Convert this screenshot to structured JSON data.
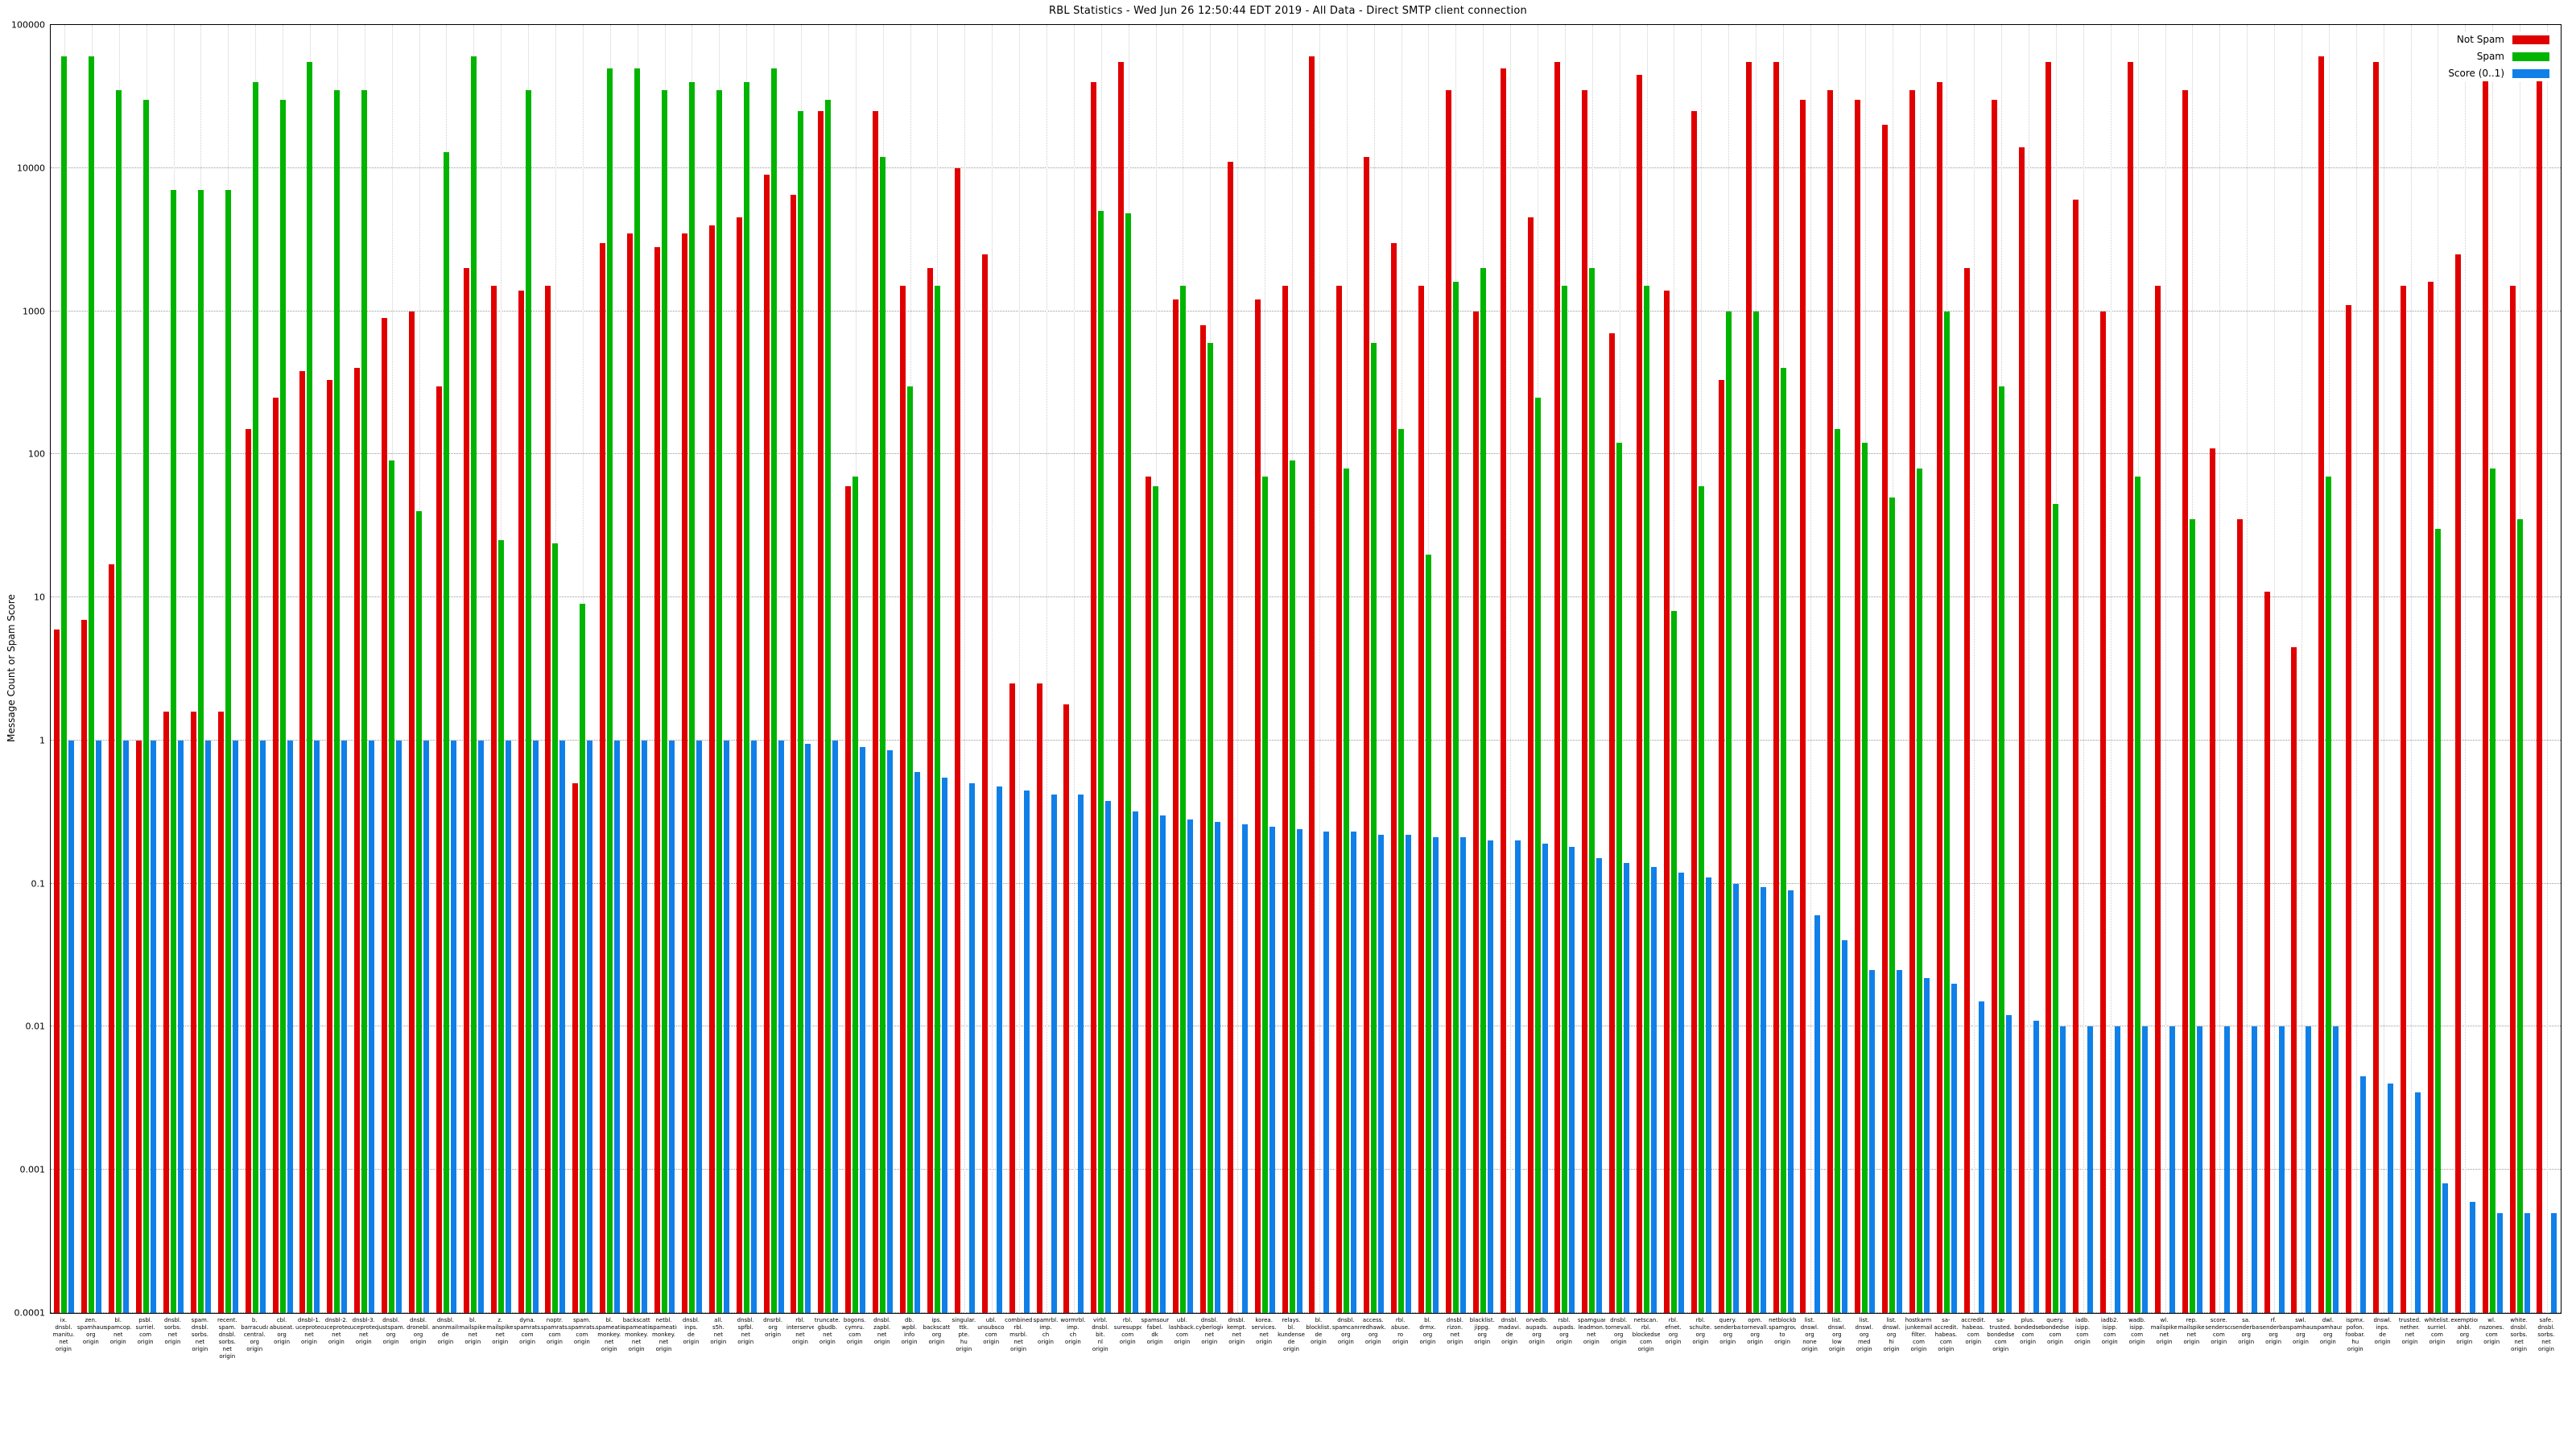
{
  "chart_data": {
    "type": "bar",
    "title": "RBL Statistics - Wed Jun 26 12:50:44 EDT 2019 - All Data - Direct SMTP client connection",
    "ylabel": "Message Count or Spam Score",
    "xlabel": "",
    "log_scale": true,
    "grid": true,
    "legend_position": "top-right",
    "ylim": [
      0.0001,
      100000
    ],
    "yticks": [
      {
        "value": 0.0001,
        "label": "0.0001"
      },
      {
        "value": 0.001,
        "label": "0.001"
      },
      {
        "value": 0.01,
        "label": "0.01"
      },
      {
        "value": 0.1,
        "label": "0.1"
      },
      {
        "value": 1,
        "label": "1"
      },
      {
        "value": 10,
        "label": "10"
      },
      {
        "value": 100,
        "label": "100"
      },
      {
        "value": 1000,
        "label": "1000"
      },
      {
        "value": 10000,
        "label": "10000"
      },
      {
        "value": 100000,
        "label": "100000"
      }
    ],
    "categories": [
      "ix.\ndnsbl.\nmanitu.\nnet\norigin",
      "zen.\nspamhaus.\norg\norigin",
      "bl.\nspamcop.\nnet\norigin",
      "psbl.\nsurriel.\ncom\norigin",
      "dnsbl.\nsorbs.\nnet\norigin",
      "spam.\ndnsbl.\nsorbs.\nnet\norigin",
      "recent.\nspam.\ndnsbl.\nsorbs.\nnet\norigin",
      "b.\nbarracuda\ncentral.\norg\norigin",
      "cbl.\nabuseat.\norg\norigin",
      "dnsbl-1.\nuceprotect.\nnet\norigin",
      "dnsbl-2.\nuceprotect.\nnet\norigin",
      "dnsbl-3.\nuceprotect.\nnet\norigin",
      "dnsbl.\njustspam.\norg\norigin",
      "dnsbl.\ndronebl.\norg\norigin",
      "dnsbl.\nanonmails.\nde\norigin",
      "bl.\nmailspike.\nnet\norigin",
      "z.\nmailspike.\nnet\norigin",
      "dyna.\nspamrats.\ncom\norigin",
      "noptr.\nspamrats.\ncom\norigin",
      "spam.\nspamrats.\ncom\norigin",
      "bl.\nspameating\nmonkey.\nnet\norigin",
      "backscatter.\nspameating\nmonkey.\nnet\norigin",
      "netbl.\nspameating\nmonkey.\nnet\norigin",
      "dnsbl.\ninps.\nde\norigin",
      "all.\ns5h.\nnet\norigin",
      "dnsbl.\nspfbl.\nnet\norigin",
      "dnsrbl.\norg\norigin",
      "rbl.\ninterserver.\nnet\norigin",
      "truncate.\ngbudb.\nnet\norigin",
      "bogons.\ncymru.\ncom\norigin",
      "dnsbl.\nzapbl.\nnet\norigin",
      "db.\nwpbl.\ninfo\norigin",
      "ips.\nbackscatterer.\norg\norigin",
      "singular.\nttk.\npte.\nhu\norigin",
      "ubl.\nunsubscore.\ncom\norigin",
      "combined.\nrbl.\nmsrbl.\nnet\norigin",
      "spamrbl.\nimp.\nch\norigin",
      "wormrbl.\nimp.\nch\norigin",
      "virbl.\ndnsbl.\nbit.\nnl\norigin",
      "rbl.\nsuresupport.\ncom\norigin",
      "spamsources.\nfabel.\ndk\norigin",
      "ubl.\nlashback.\ncom\norigin",
      "dnsbl.\ncyberlogic.\nnet\norigin",
      "dnsbl.\nkempt.\nnet\norigin",
      "korea.\nservices.\nnet\norigin",
      "relays.\nbl.\nkundenserver.\nde\norigin",
      "bl.\nblocklist.\nde\norigin",
      "dnsbl.\nspamcannibal.\norg\norigin",
      "access.\nredhawk.\norg\norigin",
      "rbl.\nabuse.\nro\norigin",
      "bl.\ndrmx.\norg\norigin",
      "dnsbl.\nrizon.\nnet\norigin",
      "blacklist.\njippg.\norg\norigin",
      "dnsbl.\nmadavi.\nde\norigin",
      "orvedb.\naupads.\norg\norigin",
      "rsbl.\naupads.\norg\norigin",
      "spamguard.\nleadmon.\nnet\norigin",
      "dnsbl.\ntornevall.\norg\norigin",
      "netscan.\nrbl.\nblockedservers.\ncom\norigin",
      "rbl.\nefnet.\norg\norigin",
      "rbl.\nschulte.\norg\norigin",
      "query.\nsenderbase.\norg\norigin",
      "opm.\ntornevall.\norg\norigin",
      "netblockbl.\nspamgrouper.\nto\norigin",
      "list.\ndnswl.\norg\nnone\norigin",
      "list.\ndnswl.\norg\nlow\norigin",
      "list.\ndnswl.\norg\nmed\norigin",
      "list.\ndnswl.\norg\nhi\norigin",
      "hostkarma.\njunkemail\nfilter.\ncom\norigin",
      "sa-accredit.\nhabeas.\ncom\norigin",
      "accredit.\nhabeas.\ncom\norigin",
      "sa-trusted.\nbondedsender.\ncom\norigin",
      "plus.\nbondedsender.\ncom\norigin",
      "query.\nbondedsender.\ncom\norigin",
      "iadb.\nisipp.\ncom\norigin",
      "iadb2.\nisipp.\ncom\norigin",
      "wadb.\nisipp.\ncom\norigin",
      "wl.\nmailspike.\nnet\norigin",
      "rep.\nmailspike.\nnet\norigin",
      "score.\nsenderscore.\ncom\norigin",
      "sa.\nsenderbase.\norg\norigin",
      "rf.\nsenderbase.\norg\norigin",
      "swl.\nspamhaus.\norg\norigin",
      "dwl.\nspamhaus.\norg\norigin",
      "ispmx.\npofon.\nfoobar.\nhu\norigin",
      "dnswl.\ninps.\nde\norigin",
      "trusted.\nnether.\nnet\norigin",
      "whitelist.\nsurriel.\ncom\norigin",
      "exemptions.\nahbl.\norg\norigin",
      "wl.\nnszones.\ncom\norigin",
      "white.\ndnsbl.\nsorbs.\nnet\norigin",
      "safe.\ndnsbl.\nsorbs.\nnet\norigin"
    ],
    "series": [
      {
        "name": "Not Spam",
        "color": "#e00000",
        "values": [
          6,
          7,
          17,
          1,
          1.6,
          1.6,
          1.6,
          150,
          250,
          380,
          330,
          400,
          900,
          1000,
          300,
          2000,
          1500,
          1400,
          1500,
          0.5,
          3000,
          3500,
          2800,
          3500,
          4000,
          4500,
          9000,
          6500,
          25000,
          60,
          25000,
          1500,
          2000,
          10000,
          2500,
          2.5,
          2.5,
          1.8,
          40000,
          55000,
          70,
          1200,
          800,
          11000,
          1200,
          1500,
          60000,
          1500,
          12000,
          3000,
          1500,
          35000,
          1000,
          50000,
          4500,
          55000,
          35000,
          700,
          45000,
          1400,
          25000,
          330,
          55000,
          55000,
          30000,
          35000,
          30000,
          20000,
          35000,
          40000,
          2000,
          30000,
          14000,
          55000,
          6000,
          1000,
          55000,
          1500,
          35000,
          110,
          35,
          11,
          4.5,
          60000,
          1100,
          55000,
          1500,
          1600,
          2500,
          45000,
          1500,
          60000
        ]
      },
      {
        "name": "Spam",
        "color": "#00b400",
        "values": [
          60000,
          60000,
          35000,
          30000,
          7000,
          7000,
          7000,
          40000,
          30000,
          55000,
          35000,
          35000,
          90,
          40,
          13000,
          60000,
          25,
          35000,
          24,
          9,
          50000,
          50000,
          35000,
          40000,
          35000,
          40000,
          50000,
          25000,
          30000,
          70,
          12000,
          300,
          1500,
          0,
          0,
          0,
          0,
          0,
          5000,
          4800,
          60,
          1500,
          600,
          0,
          70,
          90,
          0,
          80,
          600,
          150,
          20,
          1600,
          2000,
          0,
          250,
          1500,
          2000,
          120,
          1500,
          8,
          60,
          1000,
          1000,
          400,
          0,
          150,
          120,
          50,
          80,
          1000,
          0,
          300,
          0,
          45,
          0,
          0,
          70,
          0,
          35,
          0,
          0,
          0,
          0,
          70,
          0,
          0,
          0,
          30,
          0,
          80,
          35,
          0
        ]
      },
      {
        "name": "Score (0..1)",
        "color": "#1080e8",
        "values": [
          1,
          1,
          1,
          1,
          1,
          1,
          1,
          1,
          1,
          1,
          1,
          1,
          1,
          1,
          1,
          1,
          1,
          1,
          1,
          1,
          1,
          1,
          1,
          1,
          1,
          1,
          1,
          0.95,
          1,
          0.9,
          0.85,
          0.6,
          0.55,
          0.5,
          0.48,
          0.45,
          0.42,
          0.42,
          0.38,
          0.32,
          0.3,
          0.28,
          0.27,
          0.26,
          0.25,
          0.24,
          0.23,
          0.23,
          0.22,
          0.22,
          0.21,
          0.21,
          0.2,
          0.2,
          0.19,
          0.18,
          0.15,
          0.14,
          0.13,
          0.12,
          0.11,
          0.1,
          0.095,
          0.09,
          0.06,
          0.04,
          0.025,
          0.025,
          0.022,
          0.02,
          0.015,
          0.012,
          0.011,
          0.01,
          0.01,
          0.01,
          0.01,
          0.01,
          0.01,
          0.01,
          0.01,
          0.01,
          0.01,
          0.01,
          0.0045,
          0.004,
          0.0035,
          0.0008,
          0.0006,
          0.0005,
          0.0005,
          0.0005
        ]
      }
    ]
  }
}
